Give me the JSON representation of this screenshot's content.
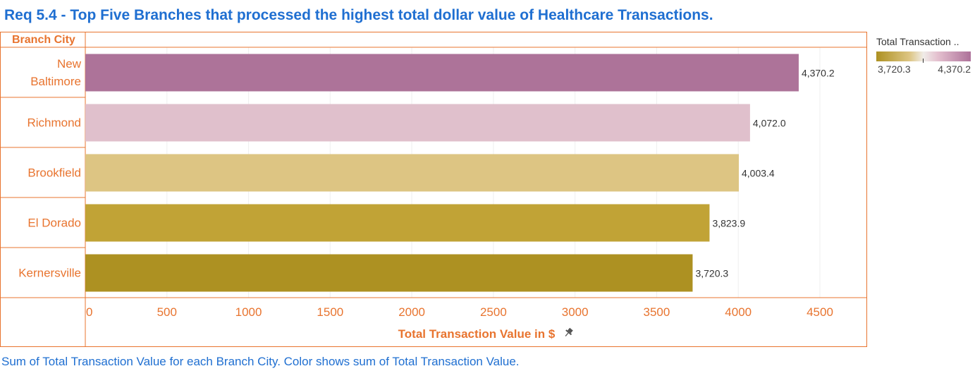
{
  "title": "Req 5.4 - Top Five Branches that processed the highest total dollar value of Healthcare Transactions.",
  "footnote": "Sum of Total Transaction Value for each Branch City.  Color shows sum of Total Transaction Value.",
  "colors": {
    "accent": "#e8742f",
    "title": "#1f6fd1",
    "gradient_low": "#ad9122",
    "gradient_mid_low": "#ddc583",
    "gradient_mid": "#f0ece8",
    "gradient_mid_high": "#e4c0cf",
    "gradient_high": "#ad7199"
  },
  "legend": {
    "title": "Total Transaction ..",
    "min_label": "3,720.3",
    "max_label": "4,370.2"
  },
  "chart_data": {
    "type": "bar",
    "orientation": "horizontal",
    "row_header": "Branch City",
    "xlabel": "Total Transaction Value in $",
    "xlim": [
      0,
      4800
    ],
    "xticks": [
      0,
      500,
      1000,
      1500,
      2000,
      2500,
      3000,
      3500,
      4000,
      4500
    ],
    "xtick_labels": [
      "0",
      "500",
      "1000",
      "1500",
      "2000",
      "2500",
      "3000",
      "3500",
      "4000",
      "4500"
    ],
    "grid": true,
    "legend_position": "top-right",
    "categories": [
      [
        "New",
        "Baltimore"
      ],
      [
        "Richmond"
      ],
      [
        "Brookfield"
      ],
      [
        "El Dorado"
      ],
      [
        "Kernersville"
      ]
    ],
    "values": [
      4370.2,
      4072.0,
      4003.4,
      3823.9,
      3720.3
    ],
    "value_labels": [
      "4,370.2",
      "4,072.0",
      "4,003.4",
      "3,823.9",
      "3,720.3"
    ],
    "bar_colors": [
      "#ad7399",
      "#e0c0cc",
      "#ddc583",
      "#c1a336",
      "#ad9122"
    ]
  }
}
